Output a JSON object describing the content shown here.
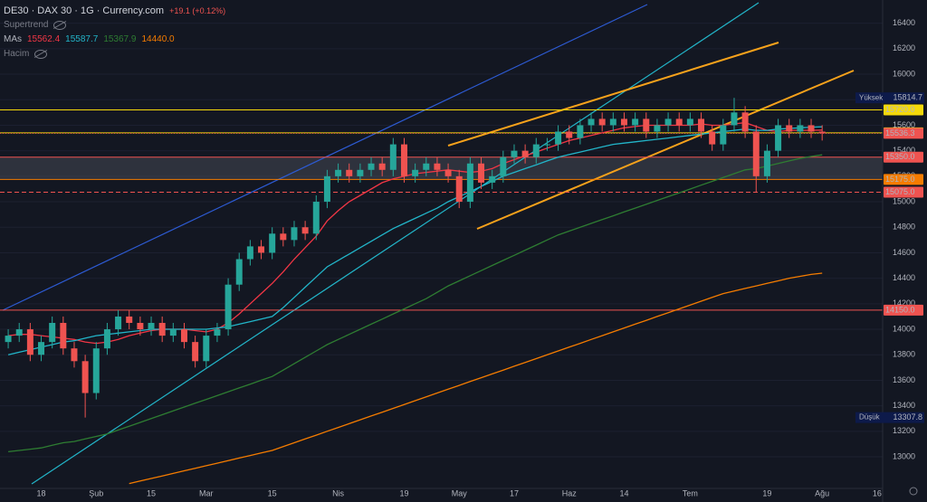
{
  "header": {
    "symbol": "DE30 · DAX 30 · 1G · Currency.com",
    "change": "+19.1 (+0.12%)",
    "supertrend": "Supertrend",
    "mas": "MAs",
    "ma_labels": [
      "15562.4",
      "15587.7",
      "15367.9",
      "14440.0"
    ],
    "volume": "Hacim"
  },
  "chart_data": {
    "type": "candlestick",
    "categories": [
      null,
      null,
      null,
      "18",
      null,
      null,
      null,
      null,
      "Şub",
      null,
      null,
      null,
      null,
      "15",
      null,
      null,
      null,
      null,
      "Mar",
      null,
      null,
      null,
      null,
      null,
      "15",
      null,
      null,
      null,
      null,
      null,
      "Nis",
      null,
      null,
      null,
      null,
      null,
      "19",
      null,
      null,
      null,
      null,
      "May",
      null,
      null,
      null,
      null,
      "17",
      null,
      null,
      null,
      null,
      "Haz",
      null,
      null,
      null,
      null,
      "14",
      null,
      null,
      null,
      null,
      null,
      "Tem",
      null,
      null,
      null,
      null,
      null,
      null,
      "19",
      null,
      null,
      null,
      null,
      "Ağu",
      null,
      null,
      null,
      null,
      "16"
    ],
    "open": [
      13900,
      13950,
      14000,
      13800,
      13900,
      14050,
      13850,
      13750,
      13500,
      13850,
      14000,
      14100,
      14050,
      14000,
      14050,
      13950,
      14000,
      13900,
      13750,
      13950,
      14000,
      14350,
      14550,
      14650,
      14600,
      14750,
      14700,
      14800,
      14750,
      15000,
      15200,
      15250,
      15200,
      15250,
      15300,
      15250,
      15450,
      15200,
      15250,
      15300,
      15250,
      15200,
      15000,
      15300,
      15150,
      15200,
      15350,
      15400,
      15350,
      15450,
      15450,
      15550,
      15500,
      15600,
      15650,
      15600,
      15650,
      15600,
      15650,
      15550,
      15600,
      15650,
      15600,
      15650,
      15550,
      15450,
      15600,
      15700,
      15550,
      15200,
      15400,
      15600,
      15550,
      15600,
      15550,
      null,
      null,
      null,
      null,
      null
    ],
    "high": [
      14000,
      14050,
      14050,
      13950,
      14100,
      14100,
      13900,
      13800,
      13900,
      14050,
      14150,
      14150,
      14100,
      14100,
      14100,
      14050,
      14050,
      13950,
      14000,
      14050,
      14400,
      14600,
      14700,
      14700,
      14800,
      14800,
      14850,
      14850,
      15050,
      15250,
      15300,
      15300,
      15300,
      15350,
      15350,
      15500,
      15500,
      15300,
      15350,
      15350,
      15300,
      15250,
      15350,
      15350,
      15250,
      15400,
      15450,
      15450,
      15500,
      15500,
      15600,
      15600,
      15650,
      15700,
      15700,
      15700,
      15700,
      15700,
      15700,
      15650,
      15700,
      15700,
      15700,
      15700,
      15600,
      15650,
      15814.7,
      15750,
      15600,
      15450,
      15650,
      15650,
      15650,
      15650,
      15600,
      null,
      null,
      null,
      null,
      null
    ],
    "low": [
      13850,
      13900,
      13750,
      13750,
      13850,
      13800,
      13700,
      13307.8,
      13450,
      13800,
      13950,
      14000,
      13950,
      13950,
      13900,
      13900,
      13850,
      13700,
      13700,
      13900,
      13950,
      14300,
      14500,
      14550,
      14550,
      14650,
      14650,
      14700,
      14700,
      14950,
      15150,
      15150,
      15150,
      15200,
      15200,
      15200,
      15150,
      15150,
      15200,
      15200,
      15150,
      14950,
      14950,
      15100,
      15100,
      15150,
      15300,
      15300,
      15300,
      15400,
      15400,
      15450,
      15450,
      15550,
      15550,
      15550,
      15550,
      15550,
      15500,
      15500,
      15550,
      15550,
      15550,
      15500,
      15400,
      15400,
      15550,
      15500,
      15075,
      15150,
      15350,
      15500,
      15500,
      15500,
      15480,
      null,
      null,
      null,
      null,
      null
    ],
    "close": [
      13950,
      14000,
      13800,
      13900,
      14050,
      13850,
      13750,
      13500,
      13850,
      14000,
      14100,
      14050,
      14000,
      14050,
      13950,
      14000,
      13900,
      13750,
      13950,
      14000,
      14350,
      14550,
      14650,
      14600,
      14750,
      14700,
      14800,
      14750,
      15000,
      15200,
      15250,
      15200,
      15250,
      15300,
      15250,
      15450,
      15200,
      15250,
      15300,
      15250,
      15200,
      15000,
      15300,
      15150,
      15200,
      15350,
      15400,
      15350,
      15450,
      15450,
      15550,
      15500,
      15600,
      15650,
      15600,
      15650,
      15600,
      15650,
      15550,
      15600,
      15650,
      15600,
      15650,
      15550,
      15450,
      15600,
      15700,
      15550,
      15200,
      15400,
      15600,
      15550,
      15600,
      15550,
      15536.3,
      null,
      null,
      null,
      null,
      null
    ],
    "up_color": "#26a69a",
    "down_color": "#ef5350",
    "series": [
      {
        "color": "#f23645",
        "values": [
          13950,
          13960,
          13960,
          13950,
          13940,
          13930,
          13920,
          13900,
          13890,
          13900,
          13920,
          13950,
          13970,
          13990,
          14000,
          14000,
          14000,
          13990,
          13980,
          14000,
          14050,
          14120,
          14200,
          14280,
          14360,
          14450,
          14550,
          14640,
          14730,
          14850,
          14930,
          15000,
          15050,
          15100,
          15150,
          15180,
          15200,
          15220,
          15230,
          15240,
          15250,
          15240,
          15230,
          15240,
          15260,
          15300,
          15330,
          15360,
          15390,
          15420,
          15450,
          15480,
          15500,
          15520,
          15540,
          15560,
          15580,
          15590,
          15600,
          15600,
          15600,
          15600,
          15600,
          15610,
          15600,
          15600,
          15610,
          15620,
          15590,
          15560,
          15550,
          15560,
          15560,
          15560,
          15562.4,
          null,
          null,
          null,
          null,
          null
        ]
      },
      {
        "color": "#22b5c9",
        "values": [
          13800,
          13820,
          13840,
          13860,
          13880,
          13900,
          13910,
          13930,
          13950,
          13960,
          13970,
          13980,
          13990,
          14000,
          14000,
          14000,
          14000,
          14000,
          14000,
          14010,
          14020,
          14040,
          14060,
          14080,
          14100,
          14170,
          14250,
          14330,
          14410,
          14490,
          14540,
          14590,
          14640,
          14690,
          14740,
          14790,
          14830,
          14870,
          14910,
          14950,
          15000,
          15040,
          15080,
          15120,
          15160,
          15200,
          15230,
          15260,
          15290,
          15320,
          15350,
          15370,
          15390,
          15410,
          15430,
          15450,
          15460,
          15470,
          15480,
          15490,
          15500,
          15510,
          15520,
          15530,
          15540,
          15550,
          15560,
          15570,
          15560,
          15560,
          15570,
          15575,
          15580,
          15585,
          15587.7,
          null,
          null,
          null,
          null,
          null
        ]
      },
      {
        "color": "#2e7d32",
        "values": [
          13040,
          13050,
          13060,
          13070,
          13090,
          13110,
          13120,
          13140,
          13160,
          13180,
          13210,
          13240,
          13270,
          13300,
          13330,
          13360,
          13390,
          13420,
          13450,
          13480,
          13510,
          13540,
          13570,
          13600,
          13630,
          13680,
          13730,
          13780,
          13830,
          13880,
          13920,
          13960,
          14000,
          14040,
          14080,
          14120,
          14160,
          14200,
          14240,
          14290,
          14340,
          14380,
          14420,
          14460,
          14500,
          14540,
          14580,
          14620,
          14660,
          14700,
          14740,
          14770,
          14800,
          14830,
          14860,
          14890,
          14920,
          14950,
          14980,
          15010,
          15040,
          15070,
          15100,
          15130,
          15160,
          15190,
          15220,
          15250,
          15260,
          15280,
          15300,
          15320,
          15340,
          15355,
          15367.9,
          null,
          null,
          null,
          null,
          null
        ]
      },
      {
        "color": "#f57c00",
        "values": [
          null,
          null,
          null,
          null,
          null,
          null,
          null,
          null,
          null,
          null,
          null,
          12790,
          12810,
          12830,
          12850,
          12870,
          12890,
          12910,
          12930,
          12950,
          12970,
          12990,
          13010,
          13030,
          13050,
          13080,
          13110,
          13140,
          13170,
          13200,
          13230,
          13260,
          13290,
          13320,
          13350,
          13380,
          13410,
          13440,
          13470,
          13500,
          13530,
          13560,
          13590,
          13620,
          13650,
          13680,
          13710,
          13740,
          13770,
          13800,
          13830,
          13860,
          13890,
          13920,
          13950,
          13980,
          14010,
          14040,
          14070,
          14100,
          14130,
          14160,
          14190,
          14220,
          14250,
          14280,
          14300,
          14320,
          14340,
          14360,
          14380,
          14400,
          14415,
          14430,
          14440,
          null,
          null,
          null,
          null,
          null
        ]
      }
    ],
    "ylim": [
      12752,
      16582
    ],
    "yticks": [
      13000,
      13200,
      13400,
      13600,
      13800,
      14000,
      14200,
      14400,
      14600,
      14800,
      15000,
      15200,
      15400,
      15600,
      15800,
      16000,
      16200,
      16400
    ],
    "grid": true,
    "levels": [
      {
        "value": 15720,
        "label": "15720.0",
        "color": "#f5d90a",
        "text_color": "#131722",
        "style": "solid"
      },
      {
        "value": 15540,
        "label": "15540.0",
        "color": "#f5d90a",
        "text_color": "#131722",
        "style": "solid"
      },
      {
        "value": 15536.3,
        "label": "15536.3",
        "color": "#ef5350",
        "text_color": "#ffffff",
        "style": "dotted"
      },
      {
        "value": 15350,
        "label": "15350.0",
        "color": "#ef5350",
        "text_color": "#ffffff",
        "style": "solid"
      },
      {
        "value": 15175,
        "label": "15175.0",
        "color": "#f57c00",
        "text_color": "#ffffff",
        "style": "solid"
      },
      {
        "value": 15075,
        "label": "15075.0",
        "color": "#ef5350",
        "text_color": "#ffffff",
        "style": "dashed"
      },
      {
        "value": 14150,
        "label": "14150.0",
        "color": "#ef5350",
        "text_color": "#ffffff",
        "style": "solid"
      }
    ],
    "high_marker": {
      "label": "Yüksek",
      "value": 15814.7
    },
    "low_marker": {
      "label": "Düşük",
      "value": 13307.8
    }
  }
}
